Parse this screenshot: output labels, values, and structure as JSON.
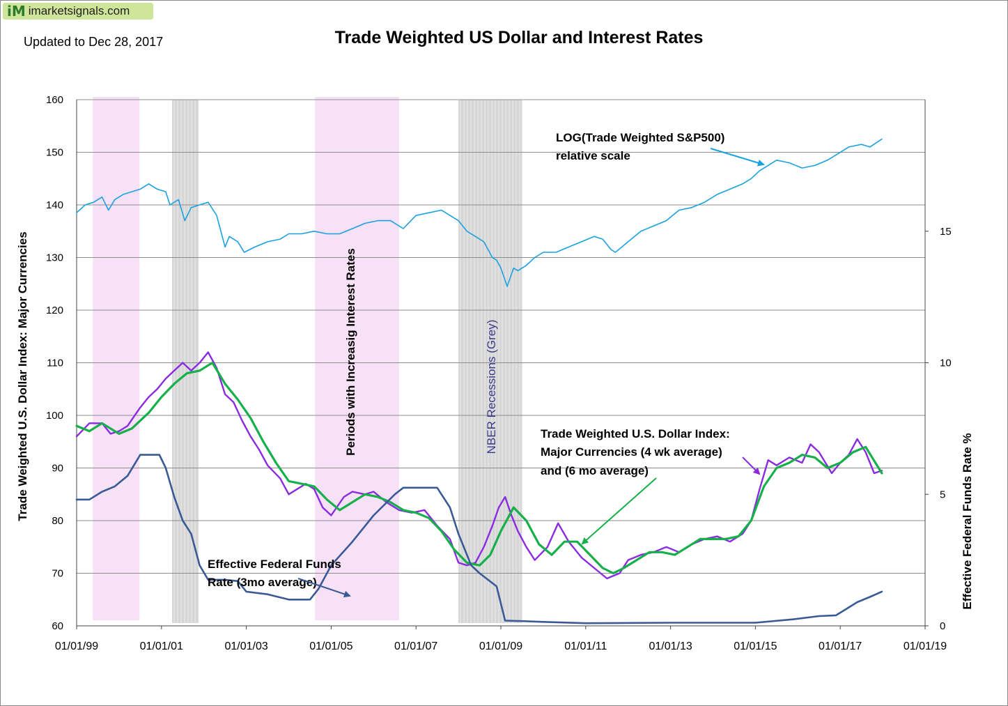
{
  "logo": {
    "mark": "iM",
    "text": "imarketsignals.com"
  },
  "updated": "Updated to Dec 28, 2017",
  "chart_data": {
    "type": "line",
    "title": "Trade Weighted US Dollar  and Interest Rates",
    "ylabel": "Trade Weighted U.S. Dollar Index:  Major Currencies",
    "y2label": "Effective Federal Funds Rate %",
    "ylim": [
      60,
      160
    ],
    "y2lim": [
      0,
      20
    ],
    "grid": true,
    "yticks": [
      "60",
      "70",
      "80",
      "90",
      "100",
      "110",
      "120",
      "130",
      "140",
      "150",
      "160"
    ],
    "y2ticks": [
      "0",
      "5",
      "10",
      "15"
    ],
    "xticks": [
      "01/01/99",
      "01/01/01",
      "01/01/03",
      "01/01/05",
      "01/01/07",
      "01/01/09",
      "01/01/11",
      "01/01/13",
      "01/01/15",
      "01/01/17",
      "01/01/19"
    ],
    "xlim_years": [
      1999.0,
      2019.0
    ],
    "colors": {
      "sp500": "#1aa1e0",
      "usd_4wk": "#8a2be2",
      "usd_6mo": "#16b04a",
      "fed_funds": "#3a5a96",
      "rising_rates_band": "#f7e1f7",
      "recession_band": "#d6d6d6"
    },
    "bands": [
      {
        "kind": "rising_rates",
        "start": 1999.38,
        "end": 2000.48
      },
      {
        "kind": "recession",
        "start": 2001.25,
        "end": 2001.88
      },
      {
        "kind": "rising_rates",
        "start": 2004.62,
        "end": 2006.6
      },
      {
        "kind": "recession",
        "start": 2008.0,
        "end": 2009.5
      }
    ],
    "series": [
      {
        "id": "sp500",
        "axis": "left",
        "x": [
          1999.0,
          1999.2,
          1999.4,
          1999.6,
          1999.75,
          1999.9,
          2000.1,
          2000.3,
          2000.5,
          2000.7,
          2000.9,
          2001.1,
          2001.2,
          2001.4,
          2001.55,
          2001.7,
          2001.9,
          2002.1,
          2002.3,
          2002.5,
          2002.6,
          2002.8,
          2002.95,
          2003.2,
          2003.5,
          2003.8,
          2004.0,
          2004.3,
          2004.6,
          2004.9,
          2005.2,
          2005.5,
          2005.8,
          2006.1,
          2006.4,
          2006.7,
          2007.0,
          2007.3,
          2007.6,
          2007.8,
          2008.0,
          2008.2,
          2008.4,
          2008.6,
          2008.8,
          2008.9,
          2009.0,
          2009.15,
          2009.3,
          2009.4,
          2009.6,
          2009.8,
          2010.0,
          2010.3,
          2010.6,
          2010.9,
          2011.2,
          2011.4,
          2011.6,
          2011.7,
          2012.0,
          2012.3,
          2012.6,
          2012.9,
          2013.2,
          2013.5,
          2013.8,
          2014.1,
          2014.4,
          2014.7,
          2014.9,
          2015.1,
          2015.3,
          2015.5,
          2015.8,
          2016.1,
          2016.4,
          2016.7,
          2016.9,
          2017.2,
          2017.5,
          2017.7,
          2017.98
        ],
        "y": [
          138.5,
          140.0,
          140.5,
          141.5,
          139.0,
          141.0,
          142.0,
          142.5,
          143.0,
          144.0,
          143.0,
          142.5,
          140.0,
          141.0,
          137.0,
          139.5,
          140.0,
          140.5,
          138.0,
          132.0,
          134.0,
          133.0,
          131.0,
          132.0,
          133.0,
          133.5,
          134.5,
          134.5,
          135.0,
          134.5,
          134.5,
          135.5,
          136.5,
          137.0,
          137.0,
          135.5,
          138.0,
          138.5,
          139.0,
          138.0,
          137.0,
          135.0,
          134.0,
          133.0,
          130.0,
          129.5,
          128.0,
          124.5,
          128.0,
          127.5,
          128.5,
          130.0,
          131.0,
          131.0,
          132.0,
          133.0,
          134.0,
          133.5,
          131.5,
          131.0,
          133.0,
          135.0,
          136.0,
          137.0,
          139.0,
          139.5,
          140.5,
          142.0,
          143.0,
          144.0,
          145.0,
          146.5,
          147.5,
          148.5,
          148.0,
          147.0,
          147.5,
          148.5,
          149.5,
          151.0,
          151.5,
          151.0,
          152.5
        ]
      },
      {
        "id": "usd_4wk",
        "axis": "left",
        "x": [
          1999.0,
          1999.3,
          1999.6,
          1999.8,
          2000.0,
          2000.2,
          2000.5,
          2000.7,
          2000.9,
          2001.1,
          2001.3,
          2001.5,
          2001.7,
          2001.9,
          2002.1,
          2002.3,
          2002.5,
          2002.7,
          2002.9,
          2003.1,
          2003.3,
          2003.5,
          2003.8,
          2004.0,
          2004.2,
          2004.4,
          2004.6,
          2004.8,
          2005.0,
          2005.3,
          2005.5,
          2005.8,
          2006.0,
          2006.3,
          2006.6,
          2006.9,
          2007.2,
          2007.5,
          2007.8,
          2008.0,
          2008.2,
          2008.4,
          2008.6,
          2008.8,
          2008.95,
          2009.1,
          2009.25,
          2009.4,
          2009.6,
          2009.8,
          2010.1,
          2010.35,
          2010.6,
          2010.9,
          2011.2,
          2011.5,
          2011.8,
          2012.0,
          2012.3,
          2012.6,
          2012.9,
          2013.2,
          2013.5,
          2013.8,
          2014.1,
          2014.4,
          2014.7,
          2014.9,
          2015.1,
          2015.3,
          2015.5,
          2015.8,
          2016.1,
          2016.3,
          2016.5,
          2016.8,
          2017.0,
          2017.2,
          2017.4,
          2017.6,
          2017.8,
          2017.98
        ],
        "y": [
          96.0,
          98.5,
          98.5,
          96.5,
          97.0,
          98.0,
          101.5,
          103.5,
          105.0,
          107.0,
          108.5,
          110.0,
          108.5,
          110.0,
          112.0,
          109.0,
          104.0,
          102.5,
          99.0,
          96.0,
          93.5,
          90.5,
          88.0,
          85.0,
          86.0,
          87.0,
          86.0,
          82.5,
          81.0,
          84.5,
          85.5,
          85.0,
          85.5,
          83.5,
          82.0,
          81.5,
          82.0,
          79.0,
          76.5,
          72.0,
          71.5,
          72.0,
          75.0,
          79.0,
          82.5,
          84.5,
          81.0,
          78.0,
          75.0,
          72.5,
          75.0,
          79.5,
          76.0,
          73.0,
          71.0,
          69.0,
          70.0,
          72.5,
          73.5,
          74.0,
          75.0,
          74.0,
          75.5,
          76.5,
          77.0,
          76.0,
          77.5,
          80.0,
          86.0,
          91.5,
          90.5,
          92.0,
          91.0,
          94.5,
          93.0,
          89.0,
          91.0,
          92.5,
          95.5,
          93.0,
          89.0,
          89.5
        ]
      },
      {
        "id": "usd_6mo",
        "axis": "left",
        "x": [
          1999.0,
          1999.3,
          1999.6,
          2000.0,
          2000.3,
          2000.7,
          2001.0,
          2001.3,
          2001.6,
          2001.9,
          2002.2,
          2002.5,
          2002.8,
          2003.1,
          2003.4,
          2003.7,
          2004.0,
          2004.3,
          2004.6,
          2004.9,
          2005.2,
          2005.5,
          2005.8,
          2006.1,
          2006.4,
          2006.7,
          2007.0,
          2007.3,
          2007.6,
          2007.9,
          2008.2,
          2008.5,
          2008.75,
          2009.0,
          2009.3,
          2009.6,
          2009.9,
          2010.2,
          2010.5,
          2010.8,
          2011.1,
          2011.4,
          2011.65,
          2011.9,
          2012.2,
          2012.5,
          2012.8,
          2013.1,
          2013.4,
          2013.7,
          2014.0,
          2014.3,
          2014.6,
          2014.9,
          2015.2,
          2015.5,
          2015.8,
          2016.1,
          2016.4,
          2016.7,
          2017.0,
          2017.3,
          2017.6,
          2017.98
        ],
        "y": [
          98.0,
          97.0,
          98.5,
          96.5,
          97.5,
          100.5,
          103.5,
          106.0,
          108.0,
          108.5,
          110.0,
          106.0,
          103.0,
          99.5,
          95.0,
          91.0,
          87.5,
          87.0,
          86.5,
          84.0,
          82.0,
          83.5,
          85.0,
          84.5,
          83.5,
          82.0,
          81.5,
          80.5,
          78.0,
          74.5,
          72.0,
          71.5,
          73.5,
          78.0,
          82.5,
          80.0,
          75.5,
          73.5,
          76.0,
          76.0,
          73.5,
          71.0,
          70.0,
          71.0,
          72.5,
          74.0,
          74.0,
          73.5,
          75.0,
          76.5,
          76.5,
          76.5,
          77.0,
          80.0,
          86.5,
          90.0,
          91.0,
          92.5,
          92.0,
          90.0,
          91.0,
          93.0,
          94.0,
          89.0
        ]
      },
      {
        "id": "fed_funds",
        "axis": "right",
        "x": [
          1999.0,
          1999.3,
          1999.6,
          1999.9,
          2000.2,
          2000.5,
          2000.95,
          2001.1,
          2001.3,
          2001.5,
          2001.7,
          2001.9,
          2002.1,
          2002.5,
          2002.8,
          2003.0,
          2003.5,
          2004.0,
          2004.5,
          2004.7,
          2005.0,
          2005.5,
          2006.0,
          2006.5,
          2006.7,
          2007.0,
          2007.5,
          2007.6,
          2007.8,
          2008.0,
          2008.3,
          2008.5,
          2008.9,
          2009.1,
          2009.5,
          2010.0,
          2011.0,
          2013.0,
          2015.0,
          2015.9,
          2016.5,
          2016.9,
          2017.1,
          2017.4,
          2017.7,
          2017.98
        ],
        "y": [
          4.8,
          4.8,
          5.1,
          5.3,
          5.7,
          6.5,
          6.5,
          6.0,
          4.9,
          4.0,
          3.5,
          2.3,
          1.75,
          1.75,
          1.7,
          1.3,
          1.2,
          1.0,
          1.0,
          1.4,
          2.3,
          3.2,
          4.2,
          5.0,
          5.25,
          5.25,
          5.25,
          5.0,
          4.5,
          3.5,
          2.3,
          2.0,
          1.5,
          0.2,
          0.18,
          0.15,
          0.1,
          0.12,
          0.12,
          0.25,
          0.37,
          0.4,
          0.6,
          0.9,
          1.1,
          1.3
        ]
      }
    ],
    "annotations": {
      "sp500_label_1": "LOG(Trade Weighted S&P500)",
      "sp500_label_2": "relative scale",
      "usd_label_1": "Trade Weighted U.S. Dollar Index:",
      "usd_label_2": "Major Currencies (4 wk average)",
      "usd_label_3": "and (6 mo average)",
      "fed_label_1": "Effective Federal Funds",
      "fed_label_2": "Rate (3mo average)",
      "rising_rates_label": "Periods with Increasig Interest Rates",
      "recession_label": "NBER Recessions (Grey)"
    }
  }
}
